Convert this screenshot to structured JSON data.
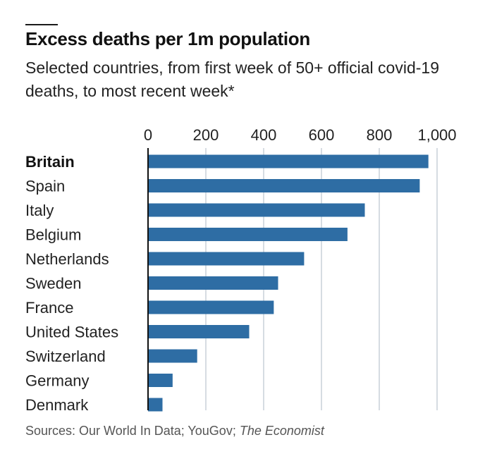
{
  "header": {
    "title": "Excess deaths per 1m population",
    "subtitle": "Selected countries, from first week of 50+ official covid-19 deaths, to most recent week*"
  },
  "footer": {
    "sources_prefix": "Sources: Our World In Data; YouGov; ",
    "sources_publication": "The Economist"
  },
  "colors": {
    "bar": "#2e6da4",
    "grid": "#c9d1d8",
    "axis": "#111111"
  },
  "chart_data": {
    "type": "bar",
    "orientation": "horizontal",
    "categories": [
      "Britain",
      "Spain",
      "Italy",
      "Belgium",
      "Netherlands",
      "Sweden",
      "France",
      "United States",
      "Switzerland",
      "Germany",
      "Denmark"
    ],
    "values": [
      970,
      940,
      750,
      690,
      540,
      450,
      435,
      350,
      170,
      85,
      50
    ],
    "highlight": "Britain",
    "xlim": [
      0,
      1000
    ],
    "ticks": [
      0,
      200,
      400,
      600,
      800,
      1000
    ],
    "tick_labels": [
      "0",
      "200",
      "400",
      "600",
      "800",
      "1,000"
    ],
    "axis_position": "top",
    "grid": true
  }
}
